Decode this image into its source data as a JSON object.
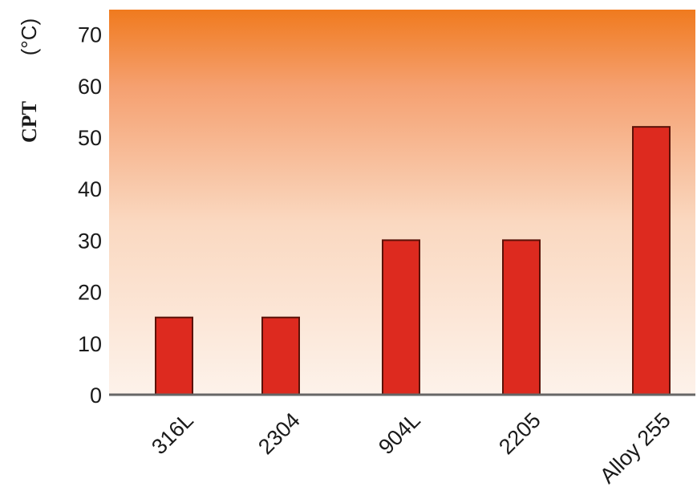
{
  "chart_data": {
    "type": "bar",
    "title": "",
    "xlabel": "",
    "ylabel": "CPT",
    "yunit": "(°C)",
    "categories": [
      "316L",
      "2304",
      "904L",
      "2205",
      "Alloy 255"
    ],
    "values": [
      15,
      15,
      30,
      30,
      52
    ],
    "ylim": [
      0,
      75
    ],
    "yticks": [
      0,
      10,
      20,
      30,
      40,
      50,
      60,
      70
    ],
    "grid": false,
    "legend": "none",
    "bar_color": "#dd2a1f",
    "bar_edge_color": "#5a1208",
    "background_gradient": [
      "#f07a1e",
      "#f5a070",
      "#fad8c0",
      "#fdf2ea"
    ]
  }
}
